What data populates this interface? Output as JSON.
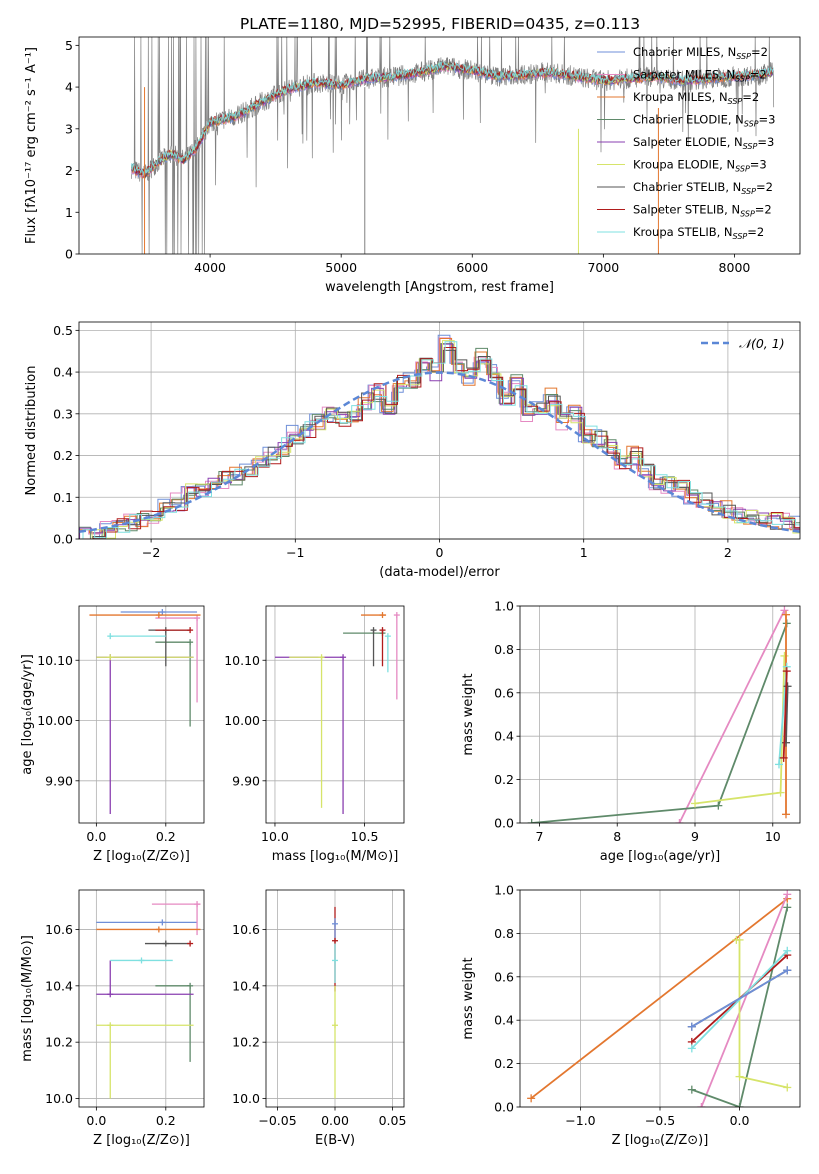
{
  "figure_title": "PLATE=1180, MJD=52995, FIBERID=0435, z=0.113",
  "colors": {
    "Chabrier MILES": "#6f8fd8",
    "Salpeter MILES": "#e58ac2",
    "Kroupa MILES": "#e3772f",
    "Chabrier ELODIE": "#5f8a6a",
    "Salpeter ELODIE": "#8a3fb0",
    "Kroupa ELODIE": "#d6e46a",
    "Chabrier STELIB": "#555555",
    "Salpeter STELIB": "#b01c1c",
    "Kroupa STELIB": "#7fe0e0",
    "data": "#808080",
    "normal": "#5b87d6"
  },
  "chart_data": [
    {
      "id": "spectrum",
      "type": "line",
      "title": "PLATE=1180, MJD=52995, FIBERID=0435, z=0.113",
      "xlabel": "wavelength [Angstrom, rest frame]",
      "ylabel": "Flux [fλ10⁻¹⁷ erg cm⁻² s⁻¹ A⁻¹]",
      "xlim": [
        3000,
        8500
      ],
      "ylim": [
        0,
        5.2
      ],
      "xticks": [
        4000,
        5000,
        6000,
        7000,
        8000
      ],
      "yticks": [
        0,
        1,
        2,
        3,
        4,
        5
      ],
      "grid": false,
      "legend_position": "top-right",
      "data_envelope": {
        "x": [
          3400,
          3500,
          3600,
          3700,
          3800,
          3900,
          4000,
          4200,
          4400,
          4600,
          4800,
          5000,
          5200,
          5400,
          5600,
          5800,
          6000,
          6200,
          6400,
          6600,
          6800,
          7000,
          7200,
          7400,
          7600,
          7800,
          8000,
          8200,
          8300
        ],
        "y": [
          2.05,
          1.9,
          2.2,
          2.4,
          2.25,
          2.55,
          3.15,
          3.3,
          3.65,
          3.95,
          4.1,
          4.05,
          4.2,
          4.25,
          4.35,
          4.5,
          4.4,
          4.25,
          4.3,
          4.35,
          4.25,
          4.15,
          4.2,
          4.25,
          4.15,
          4.2,
          4.25,
          4.3,
          4.35
        ]
      },
      "series": [
        {
          "name": "Chabrier MILES",
          "nssp": "2"
        },
        {
          "name": "Salpeter MILES",
          "nssp": "2"
        },
        {
          "name": "Kroupa MILES",
          "nssp": "2"
        },
        {
          "name": "Chabrier ELODIE",
          "nssp": "3"
        },
        {
          "name": "Salpeter ELODIE",
          "nssp": "3"
        },
        {
          "name": "Kroupa ELODIE",
          "nssp": "3"
        },
        {
          "name": "Chabrier STELIB",
          "nssp": "2"
        },
        {
          "name": "Salpeter STELIB",
          "nssp": "2"
        },
        {
          "name": "Kroupa STELIB",
          "nssp": "2"
        }
      ]
    },
    {
      "id": "residuals",
      "type": "histogram",
      "xlabel": "(data-model)/error",
      "ylabel": "Normed distribution",
      "xlim": [
        -2.5,
        2.5
      ],
      "ylim": [
        0,
        0.52
      ],
      "xticks": [
        -2,
        -1,
        0,
        1,
        2
      ],
      "yticks": [
        0.0,
        0.1,
        0.2,
        0.3,
        0.4,
        0.5
      ],
      "grid": true,
      "legend": [
        "𝒩(0, 1)"
      ],
      "legend_position": "top-right",
      "bin_edges_start": -2.5,
      "bin_width": 0.1,
      "base_values": [
        0.01,
        0.015,
        0.02,
        0.03,
        0.04,
        0.05,
        0.06,
        0.075,
        0.09,
        0.11,
        0.12,
        0.13,
        0.14,
        0.15,
        0.17,
        0.19,
        0.2,
        0.22,
        0.25,
        0.26,
        0.28,
        0.3,
        0.29,
        0.3,
        0.33,
        0.35,
        0.32,
        0.37,
        0.38,
        0.42,
        0.4,
        0.47,
        0.41,
        0.39,
        0.44,
        0.4,
        0.34,
        0.38,
        0.3,
        0.31,
        0.34,
        0.28,
        0.3,
        0.25,
        0.24,
        0.22,
        0.19,
        0.2,
        0.16,
        0.14,
        0.13,
        0.12,
        0.1,
        0.09,
        0.08,
        0.07,
        0.06,
        0.055,
        0.05,
        0.045,
        0.04,
        0.035
      ],
      "normal_curve": "N(0,1) pdf"
    },
    {
      "id": "age-vs-z",
      "type": "errorbar",
      "xlabel": "Z [log₁₀(Z/Z⊙)]",
      "ylabel": "age  [log₁₀(age/yr)]",
      "xlim": [
        -0.05,
        0.31
      ],
      "ylim": [
        9.83,
        10.19
      ],
      "xticks": [
        0.0,
        0.2
      ],
      "yticks": [
        9.9,
        10.0,
        10.1
      ],
      "grid": true,
      "points": [
        {
          "series": "Chabrier MILES",
          "x": 0.19,
          "y": 10.18,
          "xerr": [
            0.12,
            0.1
          ],
          "yerr": [
            0.0,
            0.0
          ]
        },
        {
          "series": "Salpeter MILES",
          "x": 0.29,
          "y": 10.17,
          "xerr": [
            0.12,
            0.0
          ],
          "yerr": [
            0.14,
            0.0
          ]
        },
        {
          "series": "Kroupa MILES",
          "x": 0.18,
          "y": 10.175,
          "xerr": [
            0.2,
            0.12
          ],
          "yerr": [
            0.0,
            0.0
          ]
        },
        {
          "series": "Chabrier ELODIE",
          "x": 0.27,
          "y": 10.13,
          "xerr": [
            0.1,
            0.0
          ],
          "yerr": [
            0.14,
            0.0
          ]
        },
        {
          "series": "Salpeter ELODIE",
          "x": 0.04,
          "y": 10.105,
          "xerr": [
            0.04,
            0.24
          ],
          "yerr": [
            0.26,
            0.0
          ]
        },
        {
          "series": "Kroupa ELODIE",
          "x": 0.04,
          "y": 10.105,
          "xerr": [
            0.04,
            0.24
          ],
          "yerr": [
            0.0,
            0.0
          ]
        },
        {
          "series": "Chabrier STELIB",
          "x": 0.2,
          "y": 10.15,
          "xerr": [
            0.05,
            0.07
          ],
          "yerr": [
            0.06,
            0.0
          ]
        },
        {
          "series": "Salpeter STELIB",
          "x": 0.27,
          "y": 10.15,
          "xerr": [
            0.1,
            0.0
          ],
          "yerr": [
            0.0,
            0.0
          ]
        },
        {
          "series": "Kroupa STELIB",
          "x": 0.04,
          "y": 10.14,
          "xerr": [
            0.0,
            0.16
          ],
          "yerr": [
            0.0,
            0.0
          ]
        }
      ]
    },
    {
      "id": "age-vs-mass",
      "type": "errorbar",
      "xlabel": "mass [log₁₀(M/M⊙)]",
      "ylabel": "",
      "xlim": [
        9.95,
        10.72
      ],
      "ylim": [
        9.83,
        10.19
      ],
      "xticks": [
        10.0,
        10.5
      ],
      "yticks": [
        9.9,
        10.0,
        10.1
      ],
      "grid": true,
      "points": [
        {
          "series": "Kroupa MILES",
          "x": 10.6,
          "y": 10.175,
          "xerr": [
            0.12,
            0.02
          ],
          "yerr": [
            0.0,
            0.0
          ]
        },
        {
          "series": "Salpeter MILES",
          "x": 10.68,
          "y": 10.175,
          "xerr": [
            0.0,
            0.0
          ],
          "yerr": [
            0.14,
            0.0
          ]
        },
        {
          "series": "Chabrier ELODIE",
          "x": 10.6,
          "y": 10.145,
          "xerr": [
            0.22,
            0.0
          ],
          "yerr": [
            0.0,
            0.0
          ]
        },
        {
          "series": "Salpeter ELODIE",
          "x": 10.38,
          "y": 10.105,
          "xerr": [
            0.38,
            0.0
          ],
          "yerr": [
            0.26,
            0.0
          ]
        },
        {
          "series": "Kroupa ELODIE",
          "x": 10.26,
          "y": 10.105,
          "xerr": [
            0.18,
            0.0
          ],
          "yerr": [
            0.25,
            0.0
          ]
        },
        {
          "series": "Chabrier STELIB",
          "x": 10.55,
          "y": 10.15,
          "xerr": [
            0.0,
            0.0
          ],
          "yerr": [
            0.06,
            0.0
          ]
        },
        {
          "series": "Salpeter STELIB",
          "x": 10.6,
          "y": 10.15,
          "xerr": [
            0.0,
            0.0
          ],
          "yerr": [
            0.06,
            0.0
          ]
        },
        {
          "series": "Kroupa STELIB",
          "x": 10.63,
          "y": 10.14,
          "xerr": [
            0.0,
            0.0
          ],
          "yerr": [
            0.06,
            0.0
          ]
        }
      ]
    },
    {
      "id": "weight-vs-age",
      "type": "line",
      "xlabel": "age  [log₁₀(age/yr)]",
      "ylabel": "mass weight",
      "xlim": [
        6.75,
        10.35
      ],
      "ylim": [
        0,
        1.0
      ],
      "xticks": [
        7,
        8,
        9,
        10
      ],
      "yticks": [
        0.0,
        0.2,
        0.4,
        0.6,
        0.8,
        1.0
      ],
      "grid": true,
      "lines": [
        {
          "series": "Salpeter MILES",
          "x": [
            8.8,
            10.15
          ],
          "y": [
            0.0,
            0.98
          ]
        },
        {
          "series": "Chabrier ELODIE",
          "x": [
            6.9,
            9.3,
            10.18
          ],
          "y": [
            0.0,
            0.08,
            0.92
          ]
        },
        {
          "series": "Kroupa ELODIE",
          "x": [
            9.0,
            10.1,
            10.15
          ],
          "y": [
            0.09,
            0.14,
            0.77
          ]
        },
        {
          "series": "Kroupa MILES",
          "x": [
            10.17,
            10.17
          ],
          "y": [
            0.04,
            0.96
          ]
        },
        {
          "series": "Kroupa STELIB",
          "x": [
            10.08,
            10.18
          ],
          "y": [
            0.27,
            0.72
          ]
        },
        {
          "series": "Chabrier STELIB",
          "x": [
            10.17,
            10.19
          ],
          "y": [
            0.37,
            0.63
          ]
        },
        {
          "series": "Salpeter STELIB",
          "x": [
            10.14,
            10.18
          ],
          "y": [
            0.3,
            0.7
          ]
        }
      ]
    },
    {
      "id": "mass-vs-z",
      "type": "errorbar",
      "xlabel": "Z [log₁₀(Z/Z⊙)]",
      "ylabel": "mass [log₁₀(M/M⊙)]",
      "xlim": [
        -0.05,
        0.31
      ],
      "ylim": [
        9.97,
        10.74
      ],
      "xticks": [
        0.0,
        0.2
      ],
      "yticks": [
        10.0,
        10.2,
        10.4,
        10.6
      ],
      "grid": true,
      "points": [
        {
          "series": "Chabrier MILES",
          "x": 0.19,
          "y": 10.625,
          "xerr": [
            0.19,
            0.1
          ],
          "yerr": [
            0.0,
            0.0
          ]
        },
        {
          "series": "Salpeter MILES",
          "x": 0.29,
          "y": 10.69,
          "xerr": [
            0.13,
            0.01
          ],
          "yerr": [
            0.11,
            0.0
          ]
        },
        {
          "series": "Kroupa MILES",
          "x": 0.18,
          "y": 10.6,
          "xerr": [
            0.18,
            0.12
          ],
          "yerr": [
            0.0,
            0.0
          ]
        },
        {
          "series": "Chabrier ELODIE",
          "x": 0.27,
          "y": 10.4,
          "xerr": [
            0.1,
            0.0
          ],
          "yerr": [
            0.27,
            0.0
          ]
        },
        {
          "series": "Salpeter ELODIE",
          "x": 0.04,
          "y": 10.37,
          "xerr": [
            0.04,
            0.24
          ],
          "yerr": [
            0.0,
            0.12
          ]
        },
        {
          "series": "Kroupa ELODIE",
          "x": 0.04,
          "y": 10.26,
          "xerr": [
            0.04,
            0.24
          ],
          "yerr": [
            0.26,
            0.0
          ]
        },
        {
          "series": "Chabrier STELIB",
          "x": 0.2,
          "y": 10.55,
          "xerr": [
            0.06,
            0.07
          ],
          "yerr": [
            0.0,
            0.0
          ]
        },
        {
          "series": "Salpeter STELIB",
          "x": 0.27,
          "y": 10.55,
          "xerr": [
            0.0,
            0.0
          ],
          "yerr": [
            0.0,
            0.0
          ]
        },
        {
          "series": "Kroupa STELIB",
          "x": 0.13,
          "y": 10.49,
          "xerr": [
            0.09,
            0.09
          ],
          "yerr": [
            0.0,
            0.0
          ]
        }
      ]
    },
    {
      "id": "mass-vs-ebv",
      "type": "errorbar",
      "xlabel": "E(B-V)",
      "ylabel": "",
      "xlim": [
        -0.06,
        0.06
      ],
      "ylim": [
        9.97,
        10.74
      ],
      "xticks": [
        -0.05,
        0.0,
        0.05
      ],
      "yticks": [
        10.0,
        10.2,
        10.4,
        10.6
      ],
      "grid": true,
      "points": [
        {
          "series": "Salpeter STELIB",
          "x": 0.0,
          "y": 10.56,
          "yerr": [
            0.18,
            0.12
          ]
        },
        {
          "series": "Kroupa ELODIE",
          "x": 0.0,
          "y": 10.26,
          "yerr": [
            0.26,
            0.14
          ]
        },
        {
          "series": "Kroupa STELIB",
          "x": 0.0,
          "y": 10.49,
          "yerr": [
            0.08,
            0.06
          ]
        },
        {
          "series": "Chabrier MILES",
          "x": 0.0,
          "y": 10.62,
          "yerr": [
            0.05,
            0.02
          ]
        }
      ]
    },
    {
      "id": "weight-vs-z",
      "type": "line",
      "xlabel": "Z [log₁₀(Z/Z⊙)]",
      "ylabel": "mass weight",
      "xlim": [
        -1.38,
        0.38
      ],
      "ylim": [
        0,
        1.0
      ],
      "xticks": [
        -1.0,
        -0.5,
        0.0
      ],
      "yticks": [
        0.0,
        0.2,
        0.4,
        0.6,
        0.8,
        1.0
      ],
      "grid": true,
      "lines": [
        {
          "series": "Kroupa MILES",
          "x": [
            -1.31,
            0.3
          ],
          "y": [
            0.04,
            0.96
          ]
        },
        {
          "series": "Salpeter MILES",
          "x": [
            -0.24,
            0.3
          ],
          "y": [
            0.0,
            0.98
          ]
        },
        {
          "series": "Chabrier ELODIE",
          "x": [
            -0.3,
            0.0,
            0.3
          ],
          "y": [
            0.08,
            0.0,
            0.92
          ]
        },
        {
          "series": "Kroupa ELODIE",
          "x": [
            -0.02,
            0.0,
            0.0,
            0.3
          ],
          "y": [
            0.77,
            0.77,
            0.14,
            0.09
          ]
        },
        {
          "series": "Chabrier STELIB",
          "x": [
            -0.3,
            0.3
          ],
          "y": [
            0.37,
            0.63
          ]
        },
        {
          "series": "Salpeter STELIB",
          "x": [
            -0.3,
            0.3
          ],
          "y": [
            0.3,
            0.7
          ]
        },
        {
          "series": "Kroupa STELIB",
          "x": [
            -0.3,
            0.3
          ],
          "y": [
            0.27,
            0.72
          ]
        },
        {
          "series": "Chabrier MILES",
          "x": [
            -0.3,
            0.3
          ],
          "y": [
            0.37,
            0.63
          ]
        }
      ]
    }
  ]
}
